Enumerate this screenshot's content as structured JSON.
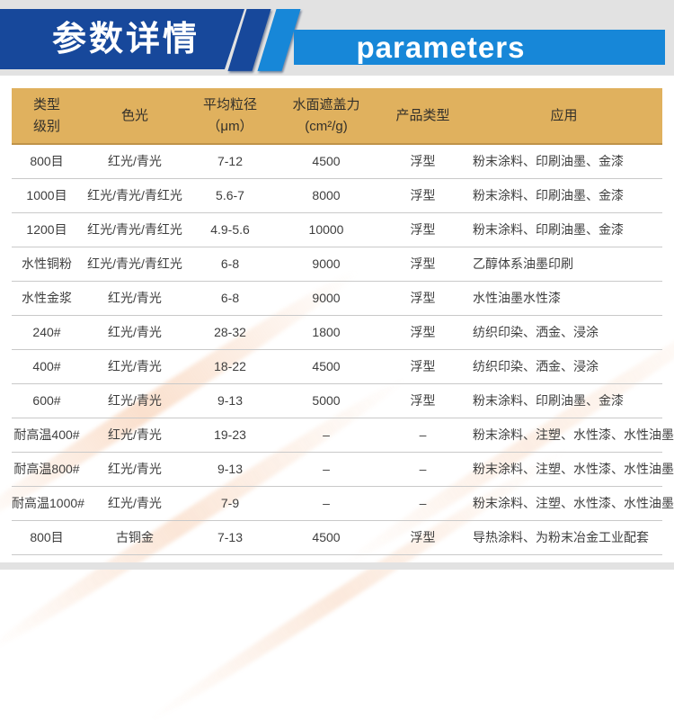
{
  "banner": {
    "title_cn": "参数详情",
    "title_en": "parameters"
  },
  "colors": {
    "navy": "#17489b",
    "azure": "#1787d8",
    "gold_header": "#e0b15e",
    "strip_gray": "#e2e2e2",
    "row_divider": "#c9c9c9",
    "body_text": "#3e3e3e"
  },
  "table": {
    "header": {
      "type_line1": "类型",
      "type_line2": "级别",
      "color_shade": "色光",
      "size_line1": "平均粒径",
      "size_line2": "（μm）",
      "coverage_line1": "水面遮盖力",
      "coverage_line2": "(cm²/g)",
      "product_type": "产品类型",
      "application": "应用"
    },
    "rows": [
      [
        "800目",
        "红光/青光",
        "7-12",
        "4500",
        "浮型",
        "粉末涂料、印刷油墨、金漆"
      ],
      [
        "1000目",
        "红光/青光/青红光",
        "5.6-7",
        "8000",
        "浮型",
        "粉末涂料、印刷油墨、金漆"
      ],
      [
        "1200目",
        "红光/青光/青红光",
        "4.9-5.6",
        "10000",
        "浮型",
        "粉末涂料、印刷油墨、金漆"
      ],
      [
        "水性铜粉",
        "红光/青光/青红光",
        "6-8",
        "9000",
        "浮型",
        "乙醇体系油墨印刷"
      ],
      [
        "水性金浆",
        "红光/青光",
        "6-8",
        "9000",
        "浮型",
        "水性油墨水性漆"
      ],
      [
        "240#",
        "红光/青光",
        "28-32",
        "1800",
        "浮型",
        "纺织印染、洒金、浸涂"
      ],
      [
        "400#",
        "红光/青光",
        "18-22",
        "4500",
        "浮型",
        "纺织印染、洒金、浸涂"
      ],
      [
        "600#",
        "红光/青光",
        "9-13",
        "5000",
        "浮型",
        "粉末涂料、印刷油墨、金漆"
      ],
      [
        "耐高温400#",
        "红光/青光",
        "19-23",
        "–",
        "–",
        "粉末涂料、注塑、水性漆、水性油墨"
      ],
      [
        "耐高温800#",
        "红光/青光",
        "9-13",
        "–",
        "–",
        "粉末涂料、注塑、水性漆、水性油墨"
      ],
      [
        "耐高温1000#",
        "红光/青光",
        "7-9",
        "–",
        "–",
        "粉末涂料、注塑、水性漆、水性油墨"
      ],
      [
        "800目",
        "古铜金",
        "7-13",
        "4500",
        "浮型",
        "导热涂料、为粉末冶金工业配套"
      ]
    ]
  }
}
